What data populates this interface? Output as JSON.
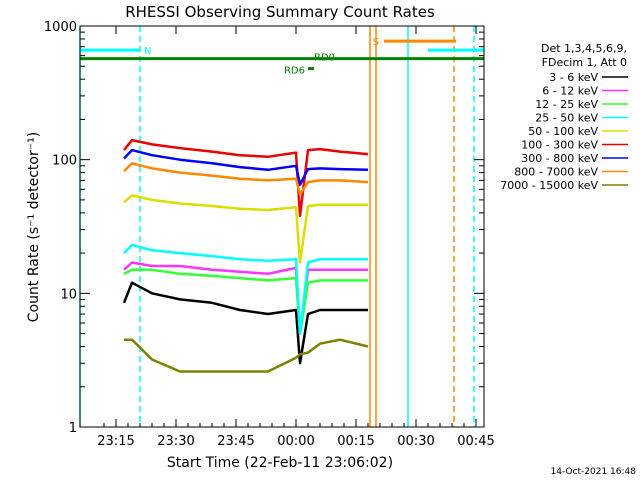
{
  "chart_data": {
    "type": "line",
    "title": "RHESSI Observing Summary Count Rates",
    "xlabel": "Start Time (22-Feb-11 23:06:02)",
    "ylabel": "Count Rate (s⁻¹ detector⁻¹)",
    "yscale": "log",
    "ylim": [
      1,
      1000
    ],
    "xlim_min_after_start": [
      0,
      101
    ],
    "x_ticks": [
      {
        "t": 9,
        "label": "23:15"
      },
      {
        "t": 24,
        "label": "23:30"
      },
      {
        "t": 39,
        "label": "23:45"
      },
      {
        "t": 54,
        "label": "00:00"
      },
      {
        "t": 69,
        "label": "00:15"
      },
      {
        "t": 84,
        "label": "00:30"
      },
      {
        "t": 99,
        "label": "00:45"
      }
    ],
    "y_ticks": [
      {
        "v": 1,
        "label": "1"
      },
      {
        "v": 10,
        "label": "10"
      },
      {
        "v": 100,
        "label": "100"
      },
      {
        "v": 1000,
        "label": "1000"
      }
    ],
    "legend_header": [
      "Det 1,3,4,5,6,9,",
      "FDecim 1, Att 0"
    ],
    "legend_position": "right",
    "series": [
      {
        "name": "3 - 6 keV",
        "color": "#000000",
        "x": [
          11,
          13,
          18,
          25,
          33,
          40,
          47,
          54,
          55,
          57,
          60,
          65,
          72
        ],
        "y": [
          8.5,
          12,
          10,
          9,
          8.5,
          7.5,
          7,
          7.5,
          3,
          7,
          7.5,
          7.5,
          7.5
        ]
      },
      {
        "name": "6 - 12 keV",
        "color": "#ff33ff",
        "x": [
          11,
          13,
          18,
          25,
          33,
          40,
          47,
          54,
          55,
          57,
          60,
          65,
          72
        ],
        "y": [
          15,
          17,
          16,
          16,
          15,
          14.5,
          14,
          15.5,
          5,
          15,
          15,
          15,
          15
        ]
      },
      {
        "name": "12 - 25 keV",
        "color": "#33ff33",
        "x": [
          11,
          13,
          18,
          25,
          33,
          40,
          47,
          54,
          55,
          57,
          60,
          65,
          72
        ],
        "y": [
          14,
          15,
          15,
          14,
          13.5,
          13,
          12.5,
          13,
          5,
          12,
          12.5,
          12.5,
          12.5
        ]
      },
      {
        "name": "25 - 50 keV",
        "color": "#00ffff",
        "x": [
          11,
          13,
          18,
          25,
          33,
          40,
          47,
          54,
          55,
          57,
          60,
          65,
          72
        ],
        "y": [
          20,
          23,
          21,
          20,
          19,
          18,
          17.5,
          18,
          5,
          17,
          18,
          18,
          18
        ]
      },
      {
        "name": "50 - 100 keV",
        "color": "#dddd00",
        "x": [
          11,
          13,
          18,
          25,
          33,
          40,
          47,
          54,
          55,
          57,
          60,
          65,
          72
        ],
        "y": [
          48,
          54,
          50,
          47,
          45,
          43,
          42,
          44,
          17,
          45,
          46,
          46,
          46
        ]
      },
      {
        "name": "100 - 300 keV",
        "color": "#ee0000",
        "x": [
          11,
          13,
          18,
          25,
          33,
          40,
          47,
          54,
          55,
          57,
          60,
          65,
          72
        ],
        "y": [
          118,
          140,
          130,
          122,
          115,
          108,
          105,
          113,
          38,
          118,
          120,
          115,
          110
        ]
      },
      {
        "name": "300 - 800 keV",
        "color": "#0000ff",
        "x": [
          11,
          13,
          18,
          25,
          33,
          40,
          47,
          54,
          55,
          57,
          60,
          65,
          72
        ],
        "y": [
          102,
          118,
          108,
          100,
          94,
          88,
          84,
          90,
          65,
          85,
          86,
          85,
          84
        ]
      },
      {
        "name": "800 - 7000 keV",
        "color": "#ff8800",
        "x": [
          11,
          13,
          18,
          25,
          33,
          40,
          47,
          54,
          55,
          57,
          60,
          65,
          72
        ],
        "y": [
          82,
          94,
          86,
          80,
          76,
          72,
          70,
          72,
          55,
          68,
          70,
          70,
          68
        ]
      },
      {
        "name": "7000 - 15000 keV",
        "color": "#808000",
        "x": [
          11,
          13,
          18,
          25,
          33,
          40,
          47,
          54,
          55,
          57,
          60,
          65,
          72
        ],
        "y": [
          4.5,
          4.5,
          3.2,
          2.6,
          2.6,
          2.6,
          2.6,
          3.3,
          3.5,
          3.6,
          4.2,
          4.5,
          4
        ]
      }
    ],
    "flags": [
      {
        "label": "N",
        "color": "#00ffff",
        "y": 660,
        "x_start": 0,
        "x_end": 15
      },
      {
        "label": "",
        "color": "#00ffff",
        "y": 660,
        "x_start": 87,
        "x_end": 101
      },
      {
        "label": "S",
        "color": "#ff8800",
        "y": 770,
        "x_start": 76,
        "x_end": 94
      },
      {
        "label": "RD0",
        "color": "#008000",
        "y": 570,
        "x_start": 0,
        "x_end": 101
      },
      {
        "label": "RD6",
        "color": "#008000",
        "y": 480,
        "x_start": 57,
        "x_end": 58.5
      }
    ],
    "vlines": [
      {
        "t": 0,
        "color": "#00ffff",
        "style": "solid"
      },
      {
        "t": 15,
        "color": "#00ffff",
        "style": "dashed"
      },
      {
        "t": 72.5,
        "color": "#ff8800",
        "style": "solid"
      },
      {
        "t": 74,
        "color": "#ff8800",
        "style": "solid"
      },
      {
        "t": 82,
        "color": "#00ffff",
        "style": "solid"
      },
      {
        "t": 93.5,
        "color": "#ff8800",
        "style": "dashed"
      },
      {
        "t": 98.5,
        "color": "#00ffff",
        "style": "dashed"
      }
    ],
    "grid": false
  },
  "footer": {
    "timestamp": "14-Oct-2021 16:48"
  }
}
